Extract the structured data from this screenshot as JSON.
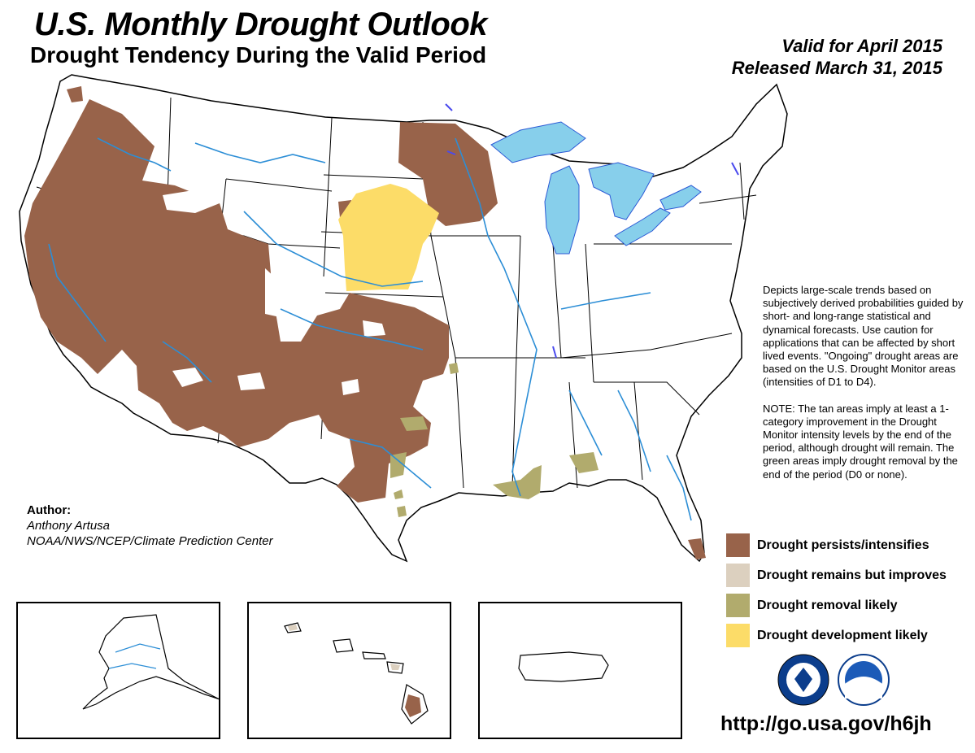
{
  "header": {
    "title": "U.S. Monthly Drought Outlook",
    "subtitle": "Drought Tendency During the Valid Period",
    "valid": "Valid for April 2015",
    "released": "Released March 31, 2015"
  },
  "notes": {
    "description": "Depicts large-scale trends based on subjectively derived probabilities guided by short- and long-range statistical and dynamical forecasts. Use caution for applications that can be affected by short lived events. \"Ongoing\" drought areas are based on the U.S. Drought Monitor areas (intensities of D1 to D4).",
    "note": "NOTE: The tan areas imply at least a 1-category improvement in the Drought Monitor intensity levels by the end of the period, although drought will remain. The green areas imply drought removal by the end of the period (D0 or none)."
  },
  "author": {
    "heading": "Author:",
    "name": "Anthony Artusa",
    "org": "NOAA/NWS/NCEP/Climate Prediction Center"
  },
  "legend": [
    {
      "label": "Drought persists/intensifies",
      "color": "#98634a"
    },
    {
      "label": "Drought remains but improves",
      "color": "#dcd0bf"
    },
    {
      "label": "Drought removal likely",
      "color": "#b1ab6d"
    },
    {
      "label": "Drought development likely",
      "color": "#fcdc68"
    }
  ],
  "insets": [
    "Alaska",
    "Hawaii",
    "Puerto Rico"
  ],
  "logos": [
    "noaa-nws-seal-icon",
    "noaa-logo-icon"
  ],
  "url": "http://go.usa.gov/h6jh",
  "colors": {
    "persists": "#98634a",
    "improves": "#dcd0bf",
    "removal": "#b1ab6d",
    "development": "#fcdc68",
    "lakes": "#87cfeb",
    "rivers": "#2c8ed6"
  }
}
